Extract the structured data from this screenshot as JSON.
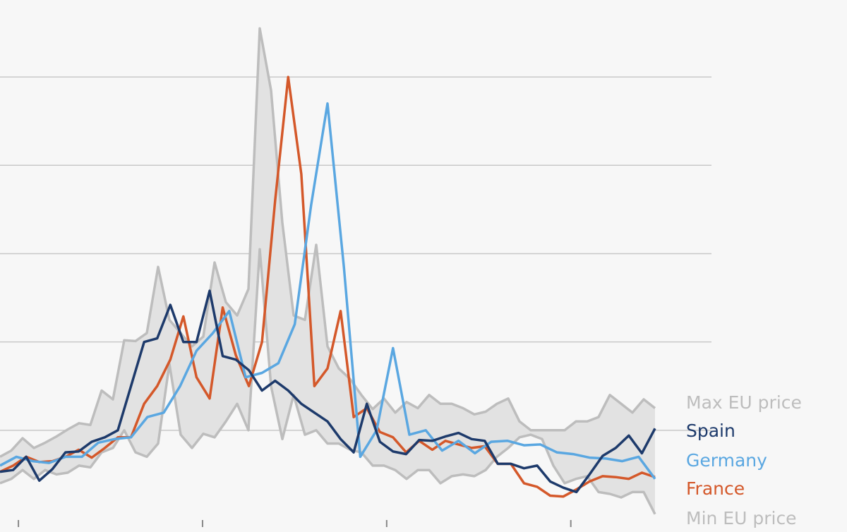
{
  "chart_data": {
    "type": "line",
    "grid": true,
    "xlim": [
      0,
      69
    ],
    "ylim": [
      0,
      580
    ],
    "gridlines_y": [
      100,
      200,
      300,
      400,
      500
    ],
    "x_ticks": [
      1.5,
      16.5,
      31.5,
      46.5
    ],
    "band": {
      "upper": [
        70,
        77,
        91,
        80,
        86,
        93,
        101,
        108,
        106,
        145,
        135,
        202,
        201,
        210,
        285,
        225,
        210,
        195,
        206,
        290,
        245,
        230,
        260,
        555,
        485,
        335,
        230,
        225,
        310,
        195,
        170,
        158,
        140,
        124,
        136,
        120,
        132,
        125,
        140,
        130,
        130,
        125,
        118,
        121,
        130,
        136,
        110,
        100,
        100,
        100,
        100,
        110,
        110,
        115,
        140,
        130,
        120,
        135,
        125
      ],
      "lower": [
        40,
        45,
        55,
        45,
        55,
        50,
        52,
        60,
        58,
        75,
        80,
        100,
        75,
        70,
        85,
        175,
        95,
        80,
        96,
        92,
        110,
        130,
        100,
        305,
        150,
        90,
        140,
        95,
        100,
        85,
        85,
        78,
        75,
        60,
        60,
        55,
        45,
        55,
        55,
        40,
        48,
        50,
        48,
        55,
        70,
        80,
        92,
        95,
        90,
        60,
        40,
        45,
        48,
        30,
        28,
        24,
        30,
        30,
        5
      ]
    },
    "series": [
      {
        "name": "France",
        "color": "#d4582a",
        "values": [
          53,
          60,
          70,
          64,
          65,
          70,
          78,
          69,
          80,
          92,
          92,
          130,
          150,
          180,
          229,
          160,
          136,
          239,
          185,
          150,
          200,
          360,
          500,
          390,
          150,
          170,
          235,
          115,
          125,
          98,
          92,
          75,
          88,
          78,
          88,
          84,
          80,
          82,
          62,
          62,
          40,
          36,
          26,
          25,
          33,
          42,
          48,
          47,
          45,
          52,
          47
        ]
      },
      {
        "name": "Germany",
        "color": "#5aa7e1",
        "values": [
          60,
          70,
          65,
          63,
          70,
          70,
          86,
          90,
          92,
          115,
          120,
          150,
          190,
          210,
          235,
          160,
          165,
          176,
          220,
          355,
          470,
          285,
          70,
          100,
          193,
          95,
          100,
          77,
          88,
          74,
          87,
          88,
          83,
          84,
          75,
          73,
          69,
          68,
          65,
          70,
          45
        ]
      },
      {
        "name": "Spain",
        "color": "#1d3a6b",
        "values": [
          53,
          55,
          70,
          43,
          56,
          75,
          76,
          87,
          92,
          100,
          150,
          200,
          204,
          242,
          200,
          200,
          258,
          184,
          180,
          168,
          145,
          156,
          145,
          130,
          120,
          110,
          90,
          75,
          130,
          87,
          76,
          73,
          89,
          88,
          93,
          97,
          90,
          88,
          62,
          62,
          57,
          60,
          42,
          35,
          30,
          50,
          71,
          80,
          94,
          74,
          102
        ]
      }
    ],
    "band_labels": {
      "max": "Max EU price",
      "min": "Min EU price"
    },
    "colors": {
      "band_fill": "#e2e2e2",
      "band_stroke": "#bdbdbd",
      "grid": "#c8c8c8",
      "background": "#f7f7f7"
    }
  }
}
